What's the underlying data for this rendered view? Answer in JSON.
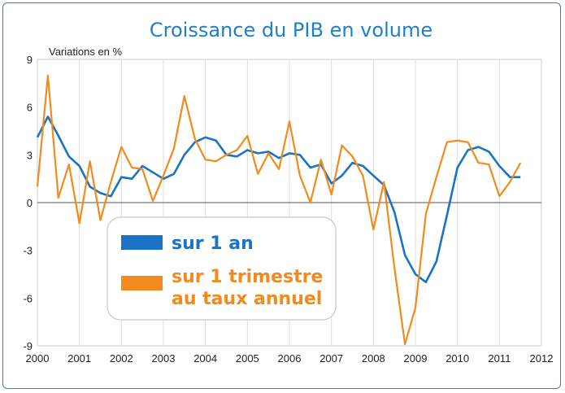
{
  "chart_data": {
    "type": "line",
    "title": "Croissance du PIB en volume",
    "ylabel": "Variations en %",
    "xlabel": "",
    "xlim": [
      2000,
      2012
    ],
    "ylim": [
      -9,
      9
    ],
    "x_ticks": [
      "2000",
      "2001",
      "2002",
      "2003",
      "2004",
      "2005",
      "2006",
      "2007",
      "2008",
      "2009",
      "2010",
      "2011",
      "2012"
    ],
    "y_ticks": [
      "9",
      "6",
      "3",
      "0",
      "-3",
      "-6",
      "-9"
    ],
    "grid": "vertical",
    "legend_position": "bottom-left",
    "series": [
      {
        "name": "sur 1 an",
        "color": "#1a73c4",
        "x": [
          2000.0,
          2000.25,
          2000.5,
          2000.75,
          2001.0,
          2001.25,
          2001.5,
          2001.75,
          2002.0,
          2002.25,
          2002.5,
          2002.75,
          2003.0,
          2003.25,
          2003.5,
          2003.75,
          2004.0,
          2004.25,
          2004.5,
          2004.75,
          2005.0,
          2005.25,
          2005.5,
          2005.75,
          2006.0,
          2006.25,
          2006.5,
          2006.75,
          2007.0,
          2007.25,
          2007.5,
          2007.75,
          2008.0,
          2008.25,
          2008.5,
          2008.75,
          2009.0,
          2009.25,
          2009.5,
          2009.75,
          2010.0,
          2010.25,
          2010.5,
          2010.75,
          2011.0,
          2011.25,
          2011.5
        ],
        "values": [
          4.1,
          5.4,
          4.2,
          2.9,
          2.3,
          1.0,
          0.6,
          0.4,
          1.6,
          1.5,
          2.3,
          1.9,
          1.5,
          1.8,
          3.0,
          3.8,
          4.1,
          3.9,
          3.0,
          2.9,
          3.3,
          3.1,
          3.2,
          2.8,
          3.1,
          3.0,
          2.2,
          2.4,
          1.2,
          1.7,
          2.5,
          2.3,
          1.7,
          1.1,
          -0.6,
          -3.3,
          -4.5,
          -5.0,
          -3.7,
          -0.8,
          2.2,
          3.3,
          3.5,
          3.2,
          2.3,
          1.6,
          1.6
        ]
      },
      {
        "name": "sur 1 trimestre au taux annuel",
        "color": "#f28a1e",
        "x": [
          2000.0,
          2000.25,
          2000.5,
          2000.75,
          2001.0,
          2001.25,
          2001.5,
          2001.75,
          2002.0,
          2002.25,
          2002.5,
          2002.75,
          2003.0,
          2003.25,
          2003.5,
          2003.75,
          2004.0,
          2004.25,
          2004.5,
          2004.75,
          2005.0,
          2005.25,
          2005.5,
          2005.75,
          2006.0,
          2006.25,
          2006.5,
          2006.75,
          2007.0,
          2007.25,
          2007.5,
          2007.75,
          2008.0,
          2008.25,
          2008.5,
          2008.75,
          2009.0,
          2009.25,
          2009.5,
          2009.75,
          2010.0,
          2010.25,
          2010.5,
          2010.75,
          2011.0,
          2011.25,
          2011.5
        ],
        "values": [
          1.0,
          8.0,
          0.3,
          2.4,
          -1.3,
          2.6,
          -1.1,
          1.3,
          3.5,
          2.2,
          2.1,
          0.1,
          1.7,
          3.4,
          6.7,
          4.0,
          2.7,
          2.6,
          3.0,
          3.3,
          4.2,
          1.8,
          3.1,
          2.1,
          5.1,
          1.7,
          0.0,
          2.7,
          0.5,
          3.6,
          2.9,
          1.7,
          -1.7,
          1.3,
          -4.1,
          -8.9,
          -6.6,
          -0.7,
          1.6,
          3.8,
          3.9,
          3.8,
          2.5,
          2.4,
          0.4,
          1.3,
          2.5
        ]
      }
    ],
    "legend": {
      "entries": [
        {
          "label_lines": [
            "sur 1 an"
          ],
          "color": "#1a73c4"
        },
        {
          "label_lines": [
            "sur 1 trimestre",
            "au taux annuel"
          ],
          "color": "#f28a1e"
        }
      ]
    }
  }
}
